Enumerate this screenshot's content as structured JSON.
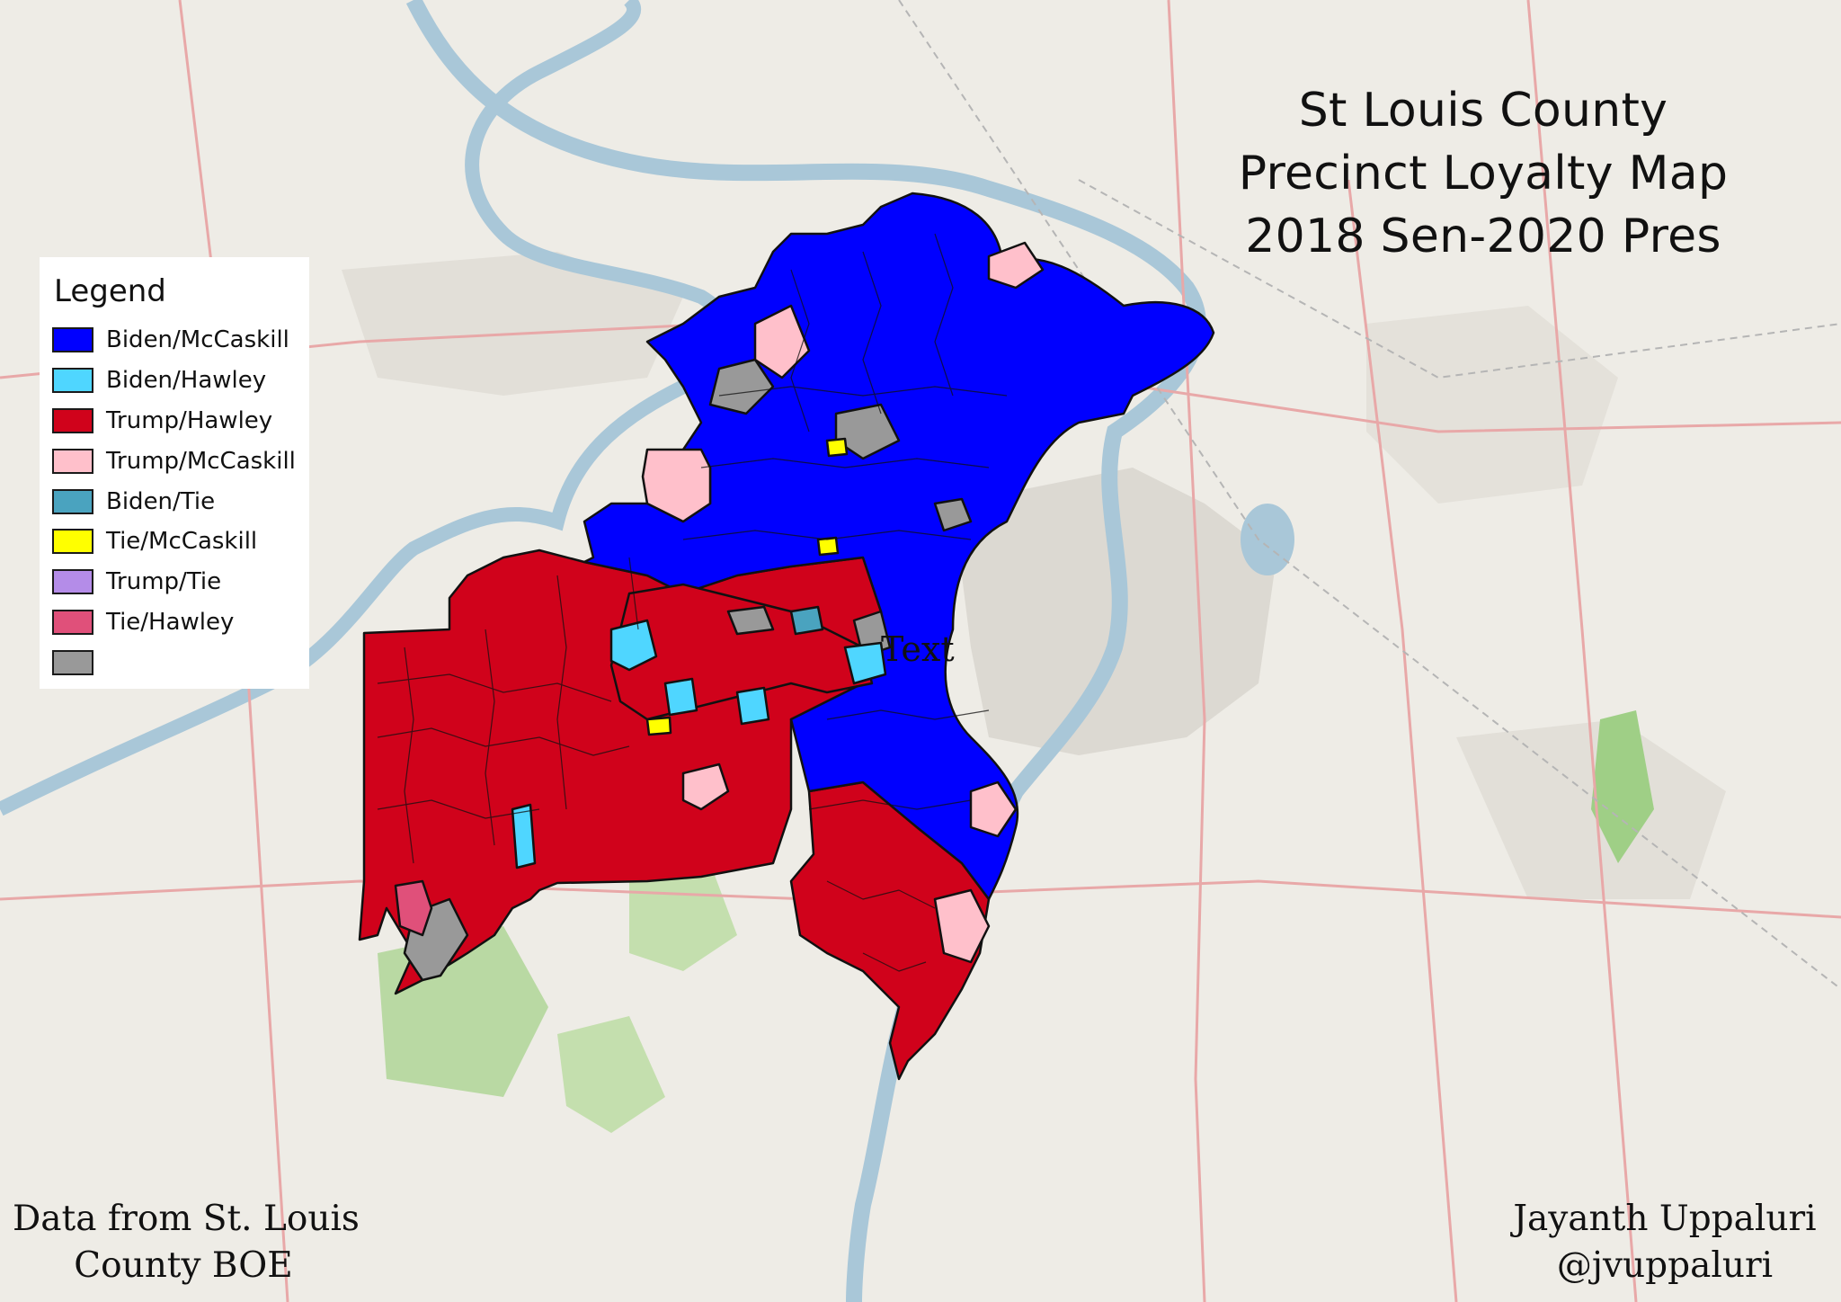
{
  "title": {
    "lines": [
      "St Louis County",
      "Precinct Loyalty Map",
      "2018 Sen-2020 Pres"
    ]
  },
  "legend": {
    "title": "Legend",
    "items": [
      {
        "label": "Biden/McCaskill",
        "color": "#0000ff"
      },
      {
        "label": "Biden/Hawley",
        "color": "#4fd6ff"
      },
      {
        "label": "Trump/Hawley",
        "color": "#d0021b"
      },
      {
        "label": "Trump/McCaskill",
        "color": "#ffc0cb"
      },
      {
        "label": "Biden/Tie",
        "color": "#4aa3bf"
      },
      {
        "label": "Tie/McCaskill",
        "color": "#ffff00"
      },
      {
        "label": "Trump/Tie",
        "color": "#b48ce8"
      },
      {
        "label": "Tie/Hawley",
        "color": "#e0507a"
      },
      {
        "label": "",
        "color": "#999999"
      }
    ]
  },
  "map": {
    "overlay_label": "Text",
    "basemap_colors": {
      "land": "#eeece6",
      "river": "#a9c7d8",
      "urban": "#dcd9d2",
      "park": "#b9d9a3",
      "road": "#e8a8a8"
    }
  },
  "credits": {
    "left": [
      "Data from St. Louis",
      "County BOE"
    ],
    "right": [
      "Jayanth Uppaluri",
      "@jvuppaluri"
    ]
  }
}
